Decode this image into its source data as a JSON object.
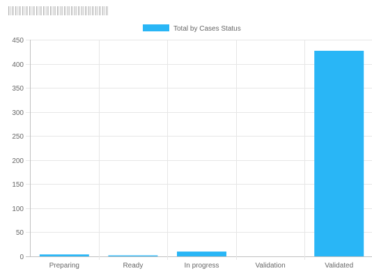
{
  "chart_data": {
    "type": "bar",
    "categories": [
      "Preparing",
      "Ready",
      "In progress",
      "Validation",
      "Validated"
    ],
    "series": [
      {
        "name": "Total by Cases Status",
        "values": [
          4,
          2,
          10,
          0,
          427
        ]
      }
    ],
    "ylim": [
      0,
      450
    ],
    "yticks": [
      0,
      50,
      100,
      150,
      200,
      250,
      300,
      350,
      400,
      450
    ],
    "legend_position": "top",
    "grid": true,
    "bar_color": "#29b6f6"
  }
}
